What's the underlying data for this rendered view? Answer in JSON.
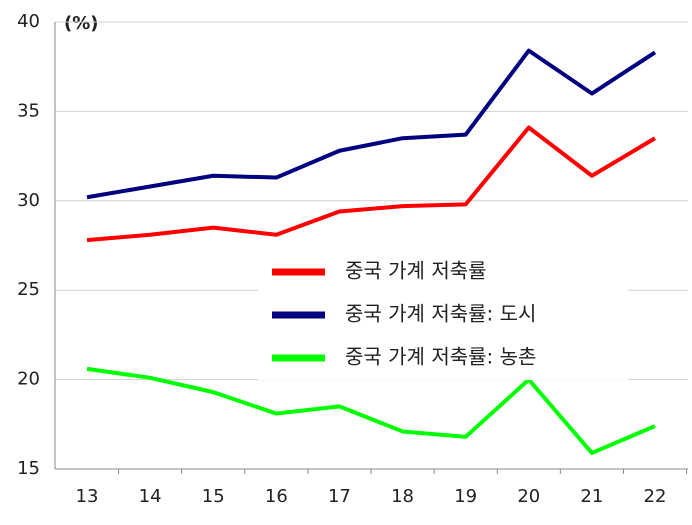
{
  "chart_data": {
    "type": "line",
    "unit_label": "(%)",
    "categories": [
      "13",
      "14",
      "15",
      "16",
      "17",
      "18",
      "19",
      "20",
      "21",
      "22"
    ],
    "series": [
      {
        "name": "중국 가계 저축률",
        "color": "#ff0000",
        "values": [
          27.8,
          28.1,
          28.5,
          28.1,
          29.4,
          29.7,
          29.8,
          34.1,
          31.4,
          33.5
        ]
      },
      {
        "name": "중국 가계 저축률: 도시",
        "color": "#000080",
        "values": [
          30.2,
          30.8,
          31.4,
          31.3,
          32.8,
          33.5,
          33.7,
          38.4,
          36.0,
          38.3
        ]
      },
      {
        "name": "중국 가계 저축률: 농촌",
        "color": "#00ff00",
        "values": [
          20.6,
          20.1,
          19.3,
          18.1,
          18.5,
          17.1,
          16.8,
          20.0,
          15.9,
          17.4
        ]
      }
    ],
    "ylim": [
      15,
      40
    ],
    "yticks": [
      15,
      20,
      25,
      30,
      35,
      40
    ],
    "grid": true
  }
}
